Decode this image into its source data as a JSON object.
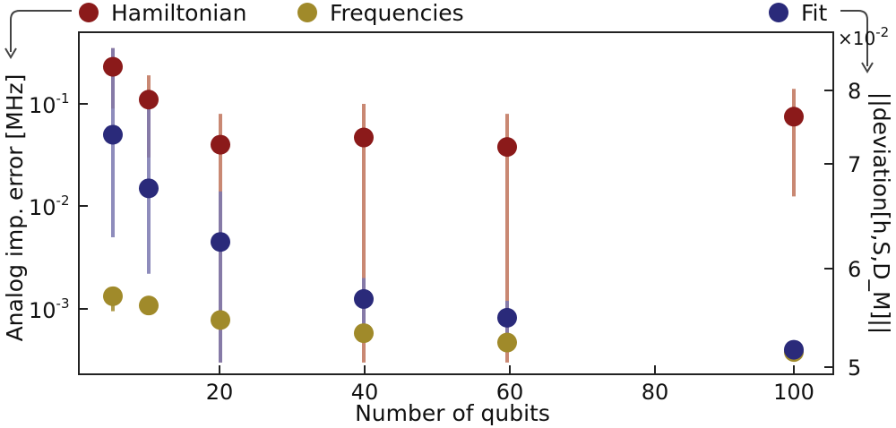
{
  "chart_data": {
    "type": "scatter",
    "xlabel": "Number of qubits",
    "ylabel_left": "Analog imp. error [MHz]",
    "ylabel_right": "||deviation[h,S,D_M]||",
    "x_ticks": [
      20,
      40,
      60,
      80,
      100
    ],
    "x_tick_labels": [
      "20",
      "40",
      "60",
      "80",
      "100"
    ],
    "xlim": [
      0,
      105
    ],
    "left_axis": {
      "scale": "log",
      "ylim": [
        0.0003,
        0.4
      ],
      "tick_base": "10",
      "tick_exponents": [
        "-1",
        "-2",
        "-3"
      ],
      "tick_values": [
        0.1,
        0.01,
        0.001
      ]
    },
    "right_axis": {
      "scale": "linear",
      "multiplier": "×10",
      "multiplier_exp": "-2",
      "ticks": [
        5,
        6,
        7,
        8
      ],
      "tick_labels": [
        "5",
        "6",
        "7",
        "8"
      ]
    },
    "legend": [
      "Hamiltonian",
      "Frequencies",
      "Fit"
    ],
    "series": [
      {
        "name": "Hamiltonian",
        "color": "#8b1a1a",
        "errcolor": "#c0735a",
        "x": [
          5,
          10,
          20,
          40,
          60,
          100
        ],
        "y": [
          0.23,
          0.11,
          0.04,
          0.047,
          0.038,
          0.075
        ],
        "ylow": [
          0.09,
          0.03,
          0.0003,
          0.0003,
          0.0003,
          0.0125
        ],
        "yhigh": [
          0.35,
          0.19,
          0.08,
          0.1,
          0.08,
          0.14
        ]
      },
      {
        "name": "Frequencies",
        "color": "#a08a2a",
        "errcolor": "#a08a2a",
        "x": [
          5,
          10,
          20,
          40,
          60,
          100
        ],
        "y": [
          0.00133,
          0.00108,
          0.00078,
          0.00058,
          0.00047,
          0.00038
        ],
        "ylow": [
          0.00095,
          0.00095,
          0.00078,
          0.00058,
          0.00047,
          0.00038
        ],
        "yhigh": [
          0.0015,
          0.00108,
          0.00078,
          0.00058,
          0.00047,
          0.00038
        ]
      },
      {
        "name": "Fit",
        "color": "#2a2a7a",
        "errcolor": "#7a78b0",
        "x": [
          5,
          10,
          20,
          40,
          60,
          100
        ],
        "y": [
          0.05,
          0.015,
          0.0045,
          0.00125,
          0.00082,
          0.0004
        ],
        "ylow": [
          0.005,
          0.0022,
          0.0003,
          0.0005,
          0.0004,
          0.0004
        ],
        "yhigh": [
          0.35,
          0.13,
          0.014,
          0.002,
          0.0012,
          0.0004
        ]
      }
    ]
  }
}
